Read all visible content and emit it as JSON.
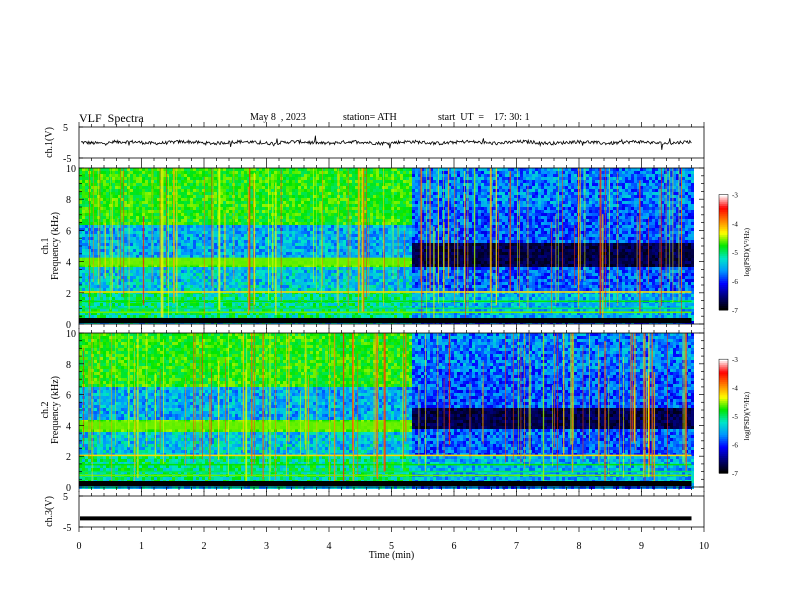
{
  "header": {
    "title": "VLF  Spectra",
    "date": "May 8  , 2023",
    "station": "station= ATH",
    "start": "start  UT  =    17: 30: 1"
  },
  "colors": {
    "cmap_stops": [
      "#000000",
      "#00007a",
      "#0000ff",
      "#0096ff",
      "#00e6c8",
      "#00e600",
      "#ffff00",
      "#ff8000",
      "#ff0000",
      "#ffffff"
    ],
    "trace": "#000000"
  },
  "chart_data": [
    {
      "type": "line",
      "panel": "ch1-waveform",
      "ylabel": "ch.1(V)",
      "ylim": [
        -5,
        5
      ],
      "yticks": [
        "5",
        "-5"
      ],
      "series": [
        {
          "baseline_volts": 0,
          "noise_amplitude_volts": 1.2
        }
      ]
    },
    {
      "type": "heatmap",
      "panel": "ch1-spectrogram",
      "ylabel_top": "ch.1",
      "ylabel": "Frequency  (kHz)",
      "ylim": [
        0,
        10
      ],
      "yticks": [
        "0",
        "2",
        "4",
        "6",
        "8",
        "10"
      ],
      "xlim": [
        0,
        10
      ],
      "data_end_min": 9.8,
      "transition_min": 5.3,
      "band_khz": 4.0,
      "colorbar": {
        "label": "log(PSD)(V²/Hz)",
        "ticks": [
          "-3",
          "-4",
          "-5",
          "-6",
          "-7"
        ],
        "range": [
          -7,
          -3
        ]
      }
    },
    {
      "type": "heatmap",
      "panel": "ch2-spectrogram",
      "ylabel_top": "ch.2",
      "ylabel": "Frequency  (kHz)",
      "ylim": [
        0,
        10
      ],
      "yticks": [
        "0",
        "2",
        "4",
        "6",
        "8",
        "10"
      ],
      "xlim": [
        0,
        10
      ],
      "data_end_min": 9.8,
      "transition_min": 5.3,
      "band_khz": 4.0,
      "colorbar": {
        "label": "log(PSD)(V²/Hz)",
        "ticks": [
          "-3",
          "-4",
          "-5",
          "-6",
          "-7"
        ],
        "range": [
          -7,
          -3
        ]
      }
    },
    {
      "type": "line",
      "panel": "ch3-waveform",
      "ylabel": "ch.3(V)",
      "ylim": [
        -5,
        5
      ],
      "yticks": [
        "5",
        "-5"
      ],
      "series": [
        {
          "baseline_volts": -2.2,
          "noise_amplitude_volts": 0
        }
      ]
    }
  ],
  "xaxis": {
    "label": "Time  (min)",
    "ticks": [
      "0",
      "1",
      "2",
      "3",
      "4",
      "5",
      "6",
      "7",
      "8",
      "9",
      "10"
    ]
  }
}
